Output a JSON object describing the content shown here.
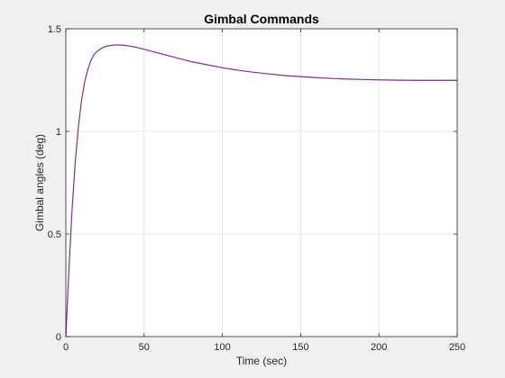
{
  "chart_data": {
    "type": "line",
    "title": "Gimbal Commands",
    "xlabel": "Time (sec)",
    "ylabel": "Gimbal angles (deg)",
    "xlim": [
      0,
      250
    ],
    "ylim": [
      0,
      1.5
    ],
    "xticks": [
      0,
      50,
      100,
      150,
      200,
      250
    ],
    "yticks": [
      0,
      0.5,
      1,
      1.5
    ],
    "xtick_labels": [
      "0",
      "50",
      "100",
      "150",
      "200",
      "250"
    ],
    "ytick_labels": [
      "0",
      "0.5",
      "1",
      "1.5"
    ],
    "grid": true,
    "series": [
      {
        "color": "#7E2F8E",
        "x": [
          0,
          2,
          4,
          6,
          8,
          10,
          12,
          14,
          16,
          18,
          20,
          22,
          24,
          26,
          28,
          30,
          32,
          35,
          38,
          40,
          45,
          50,
          55,
          60,
          70,
          80,
          90,
          100,
          110,
          120,
          130,
          140,
          150,
          160,
          170,
          180,
          190,
          200,
          210,
          220,
          230,
          240,
          250
        ],
        "y": [
          0,
          0.33,
          0.62,
          0.85,
          1.02,
          1.15,
          1.24,
          1.3,
          1.345,
          1.375,
          1.39,
          1.4,
          1.41,
          1.415,
          1.418,
          1.42,
          1.421,
          1.421,
          1.419,
          1.417,
          1.41,
          1.4,
          1.39,
          1.38,
          1.36,
          1.34,
          1.325,
          1.31,
          1.298,
          1.288,
          1.28,
          1.272,
          1.267,
          1.262,
          1.258,
          1.255,
          1.253,
          1.251,
          1.25,
          1.249,
          1.249,
          1.249,
          1.249
        ]
      }
    ]
  },
  "colors": {
    "figure_background": "#f0f0f0",
    "axes_background": "#ffffff",
    "axes_edge": "#262626",
    "grid": "#dfdfdf"
  }
}
